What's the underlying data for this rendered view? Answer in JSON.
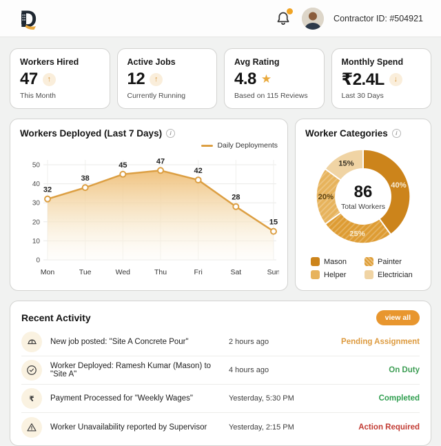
{
  "header": {
    "contractor_id": "Contractor ID: #504921"
  },
  "stats": [
    {
      "title": "Workers Hired",
      "value": "47",
      "trend_icon": "↑",
      "subtitle": "This Month"
    },
    {
      "title": "Active Jobs",
      "value": "12",
      "trend_icon": "↑",
      "subtitle": "Currently Running"
    },
    {
      "title": "Avg Rating",
      "value": "4.8",
      "trend_icon": "★",
      "subtitle": "Based on 115 Reviews"
    },
    {
      "title": "Monthly Spend",
      "value": "₹2.4L",
      "trend_icon": "↓",
      "subtitle": "Last 30 Days"
    }
  ],
  "chart_data": [
    {
      "type": "area",
      "title": "Workers Deployed (Last 7 Days)",
      "legend": "Daily Deployments",
      "legend_position": "top-right",
      "categories": [
        "Mon",
        "Tue",
        "Wed",
        "Thu",
        "Fri",
        "Sat",
        "Sun"
      ],
      "values": [
        32,
        38,
        45,
        47,
        42,
        28,
        15
      ],
      "ylim": [
        0,
        50
      ],
      "yticks": [
        0,
        10,
        20,
        30,
        40,
        50
      ],
      "grid": true,
      "line_color": "#DC9F43"
    },
    {
      "type": "pie",
      "title": "Worker Categories",
      "center_value": "86",
      "center_label": "Total Workers",
      "segments": [
        {
          "label": "Mason",
          "pct": 40,
          "color": "#CC841B",
          "label_color": "#F7ECD6",
          "hatch": false
        },
        {
          "label": "Painter",
          "pct": 25,
          "color": "#DE9C33",
          "label_color": "#F8EDD4",
          "hatch": true
        },
        {
          "label": "Helper",
          "pct": 20,
          "color": "#E7B35C",
          "label_color": "#5d4312",
          "hatch": true
        },
        {
          "label": "Electrician",
          "pct": 15,
          "color": "#F0D4A4",
          "label_color": "#3a3325",
          "hatch": false
        }
      ]
    }
  ],
  "activity": {
    "title": "Recent Activity",
    "view_all_label": "view all",
    "rows": [
      {
        "icon": "hard-hat-icon",
        "text": "New job posted: \"Site A Concrete Pour\"",
        "time": "2 hours ago",
        "status": "Pending Assignment",
        "status_color": "#DD9A3E"
      },
      {
        "icon": "check-circle-icon",
        "text": "Worker Deployed: Ramesh Kumar (Mason) to \"Site A\"",
        "time": "4 hours ago",
        "status": "On Duty",
        "status_color": "#3E9E55"
      },
      {
        "icon": "rupee-icon",
        "text": "Payment Processed for \"Weekly Wages\"",
        "time": "Yesterday, 5:30 PM",
        "status": "Completed",
        "status_color": "#2F9E4F"
      },
      {
        "icon": "warning-triangle-icon",
        "text": "Worker Unavailability reported by Supervisor",
        "time": "Yesterday, 2:15 PM",
        "status": "Action Required",
        "status_color": "#C23B33"
      }
    ]
  },
  "colors": {
    "accent_orange": "#E8962E",
    "badge_bg": "#FAEEDB",
    "page_bg": "#f1f2f1"
  }
}
